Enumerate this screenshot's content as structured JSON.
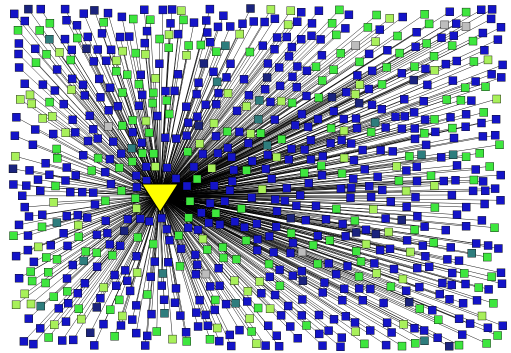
{
  "diagram": {
    "type": "star-network",
    "hub": {
      "shape": "inverted-triangle",
      "fill": "#ffff00",
      "stroke": "#000000"
    },
    "edges": {
      "color": "#000000",
      "directed": true
    },
    "node_shape": "square",
    "node_colors": {
      "blue": "#1414c8",
      "green": "#3ee63e",
      "light_green": "#a8f05a",
      "teal": "#2e7d7d",
      "navy": "#1a237e",
      "gray": "#bdbdbd"
    },
    "node_count_approx": 750,
    "color_mix": {
      "blue": 0.62,
      "green": 0.24,
      "light_green": 0.09,
      "teal": 0.02,
      "navy": 0.02,
      "gray": 0.01
    }
  }
}
